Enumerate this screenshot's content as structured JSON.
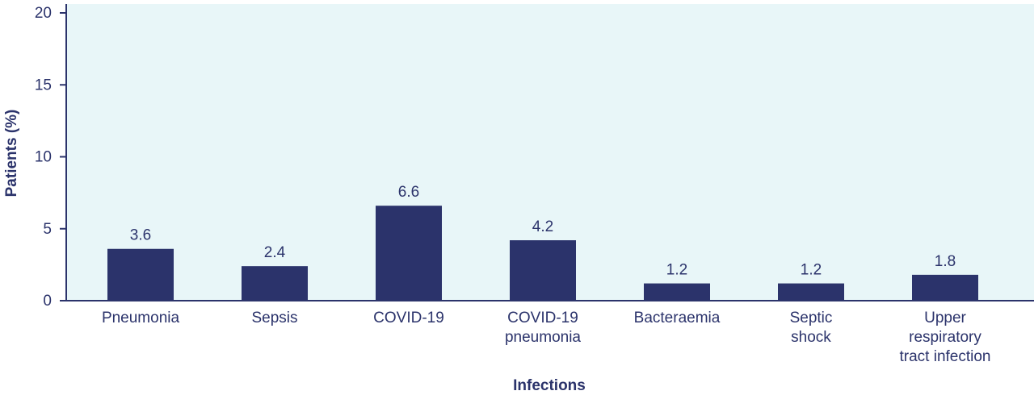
{
  "chart_data": {
    "type": "bar",
    "title": "",
    "xlabel": "Infections",
    "ylabel": "Patients (%)",
    "ylim": [
      0,
      20
    ],
    "yticks": [
      "0",
      "5",
      "10",
      "15",
      "20"
    ],
    "grid": false,
    "categories": [
      [
        "Pneumonia"
      ],
      [
        "Sepsis"
      ],
      [
        "COVID-19"
      ],
      [
        "COVID-19",
        "pneumonia"
      ],
      [
        "Bacteraemia"
      ],
      [
        "Septic",
        "shock"
      ],
      [
        "Upper",
        "respiratory",
        "tract infection"
      ]
    ],
    "values": [
      3.6,
      2.4,
      6.6,
      4.2,
      1.2,
      1.2,
      1.8
    ],
    "value_labels": [
      "3.6",
      "2.4",
      "6.6",
      "4.2",
      "1.2",
      "1.2",
      "1.8"
    ],
    "colors": {
      "bar": "#2b336b",
      "plot_background": "#e8f6f8",
      "axis": "#2b336b",
      "text": "#2b336b"
    }
  }
}
